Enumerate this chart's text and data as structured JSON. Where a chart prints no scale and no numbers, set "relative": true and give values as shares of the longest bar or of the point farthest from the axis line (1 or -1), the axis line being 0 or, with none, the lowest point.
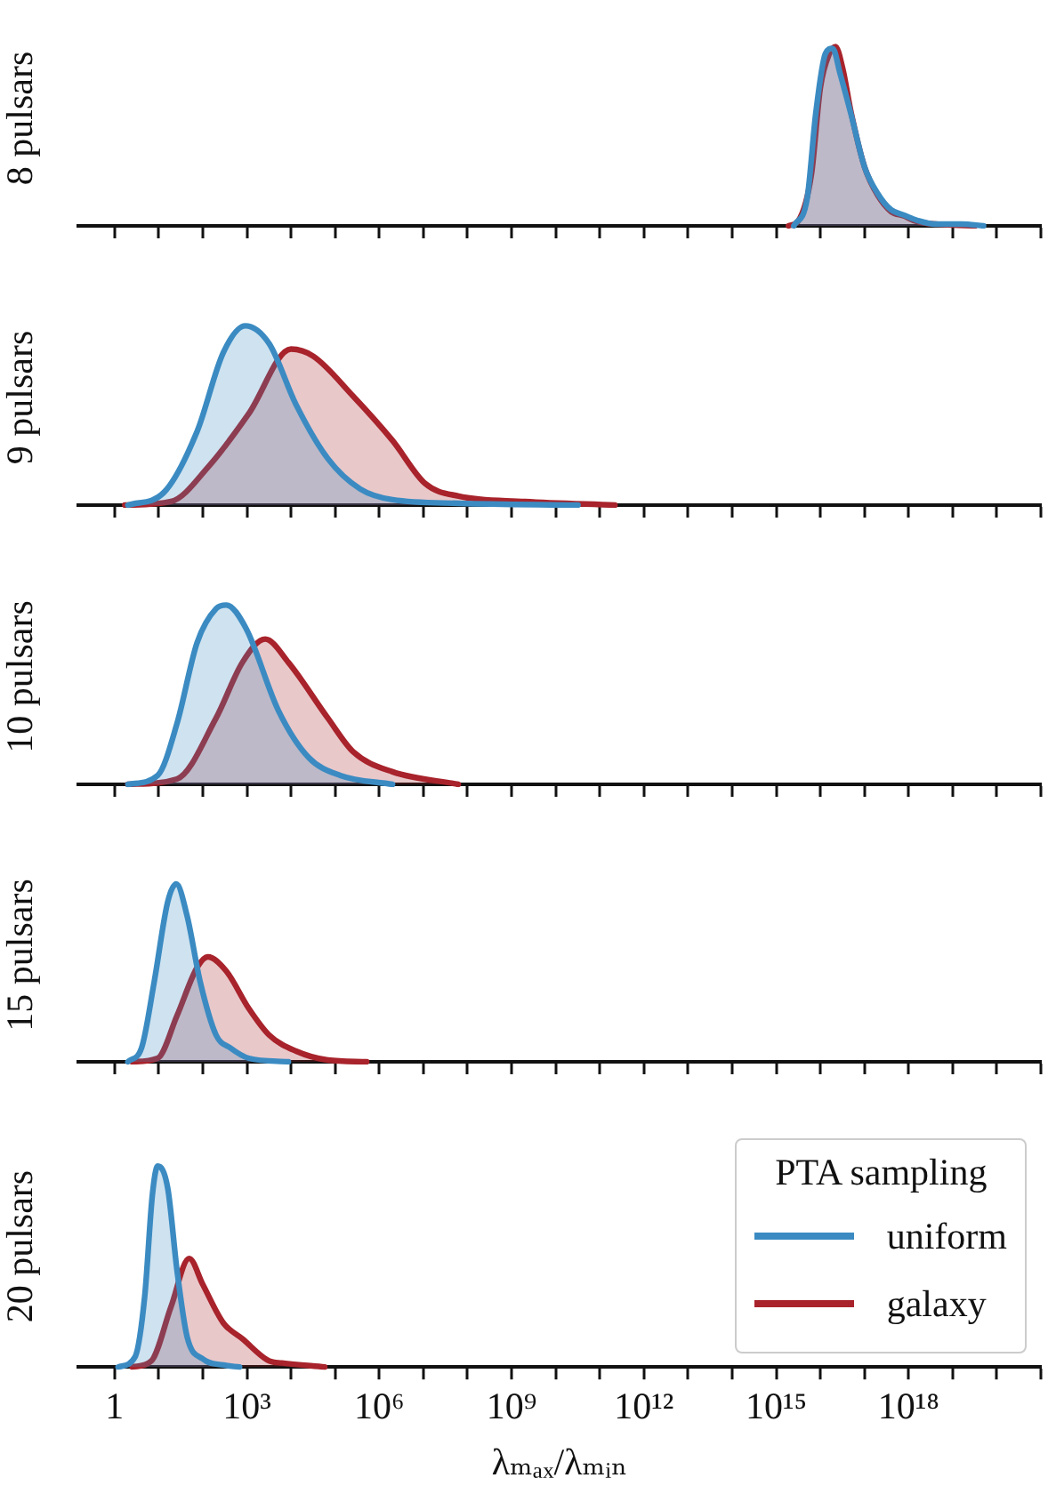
{
  "chart_data": [
    {
      "type": "area",
      "relative": true,
      "log": "x",
      "marker": "none",
      "ylabel": "8 pulsars",
      "tick_labels": false,
      "legend": false,
      "xlim": [
        0.15,
        1e+21
      ],
      "xticks": [
        {
          "value": 1,
          "label": null
        },
        {
          "value": 10,
          "label": null
        },
        {
          "value": 100,
          "label": null
        },
        {
          "value": 1000.0,
          "label": null
        },
        {
          "value": 10000.0,
          "label": null
        },
        {
          "value": 100000.0,
          "label": null
        },
        {
          "value": 1000000.0,
          "label": null
        },
        {
          "value": 10000000.0,
          "label": null
        },
        {
          "value": 100000000.0,
          "label": null
        },
        {
          "value": 1000000000.0,
          "label": null
        },
        {
          "value": 10000000000.0,
          "label": null
        },
        {
          "value": 100000000000.0,
          "label": null
        },
        {
          "value": 1000000000000.0,
          "label": null
        },
        {
          "value": 10000000000000.0,
          "label": null
        },
        {
          "value": 100000000000000.0,
          "label": null
        },
        {
          "value": 1000000000000000.0,
          "label": null
        },
        {
          "value": 1e+16,
          "label": null
        },
        {
          "value": 1e+17,
          "label": null
        },
        {
          "value": 1e+18,
          "label": null
        },
        {
          "value": 1e+19,
          "label": null
        },
        {
          "value": 1e+20,
          "label": null
        },
        {
          "value": 1e+21,
          "label": null
        }
      ],
      "series": [
        {
          "color": "#3b8bc2",
          "x": [
            2500000000000000.0,
            5000000000000000.0,
            7900000000000000.0,
            1.3e+16,
            1.9e+16,
            2.8e+16,
            5e+16,
            1e+17,
            2e+17,
            4e+17,
            7.9e+17,
            1.6e+18,
            4e+18,
            1.6e+19,
            5e+19
          ],
          "values": [
            0,
            0.15,
            0.63,
            0.96,
            0.99,
            0.85,
            0.62,
            0.33,
            0.18,
            0.09,
            0.06,
            0.03,
            0.01,
            0.01,
            0
          ]
        },
        {
          "color": "#a8232b",
          "x": [
            1900000000000000.0,
            3200000000000000.0,
            6300000000000000.0,
            1e+16,
            1.6e+16,
            2.2e+16,
            3.2e+16,
            5e+16,
            1e+17,
            2e+17,
            4e+17,
            7.9e+17,
            1.3e+18,
            2.5e+18,
            6.3e+18,
            3.2e+19
          ],
          "values": [
            0,
            0.03,
            0.29,
            0.77,
            0.96,
            1,
            0.88,
            0.63,
            0.33,
            0.17,
            0.08,
            0.055,
            0.03,
            0.015,
            0.007,
            0
          ]
        }
      ]
    },
    {
      "type": "area",
      "relative": true,
      "log": "x",
      "marker": "none",
      "ylabel": "9 pulsars",
      "tick_labels": false,
      "legend": false,
      "xlim": [
        0.15,
        1e+21
      ],
      "xticks": [
        {
          "value": 1,
          "label": null
        },
        {
          "value": 10,
          "label": null
        },
        {
          "value": 100,
          "label": null
        },
        {
          "value": 1000.0,
          "label": null
        },
        {
          "value": 10000.0,
          "label": null
        },
        {
          "value": 100000.0,
          "label": null
        },
        {
          "value": 1000000.0,
          "label": null
        },
        {
          "value": 10000000.0,
          "label": null
        },
        {
          "value": 100000000.0,
          "label": null
        },
        {
          "value": 1000000000.0,
          "label": null
        },
        {
          "value": 10000000000.0,
          "label": null
        },
        {
          "value": 100000000000.0,
          "label": null
        },
        {
          "value": 1000000000000.0,
          "label": null
        },
        {
          "value": 10000000000000.0,
          "label": null
        },
        {
          "value": 100000000000000.0,
          "label": null
        },
        {
          "value": 1000000000000000.0,
          "label": null
        },
        {
          "value": 1e+16,
          "label": null
        },
        {
          "value": 1e+17,
          "label": null
        },
        {
          "value": 1e+18,
          "label": null
        },
        {
          "value": 1e+19,
          "label": null
        },
        {
          "value": 1e+20,
          "label": null
        },
        {
          "value": 1e+21,
          "label": null
        }
      ],
      "series": [
        {
          "color": "#3b8bc2",
          "x": [
            2,
            13,
            74,
            290,
            910,
            3200,
            13000.0,
            68000.0,
            370000.0,
            2000000.0,
            63000000.0,
            32000000000.0
          ],
          "values": [
            0,
            0.07,
            0.41,
            0.85,
            1,
            0.9,
            0.56,
            0.26,
            0.09,
            0.03,
            0.01,
            0
          ]
        },
        {
          "color": "#a8232b",
          "x": [
            1.7,
            19,
            140,
            1100,
            10000.0,
            32000.0,
            250000.0,
            2000000.0,
            11000000.0,
            63000000.0,
            2000000000.0,
            220000000000.0
          ],
          "values": [
            0,
            0.02,
            0.22,
            0.51,
            0.87,
            0.83,
            0.61,
            0.36,
            0.12,
            0.05,
            0.02,
            0
          ]
        }
      ]
    },
    {
      "type": "area",
      "relative": true,
      "log": "x",
      "marker": "none",
      "ylabel": "10 pulsars",
      "tick_labels": false,
      "legend": false,
      "xlim": [
        0.15,
        1e+21
      ],
      "xticks": [
        {
          "value": 1,
          "label": null
        },
        {
          "value": 10,
          "label": null
        },
        {
          "value": 100,
          "label": null
        },
        {
          "value": 1000.0,
          "label": null
        },
        {
          "value": 10000.0,
          "label": null
        },
        {
          "value": 100000.0,
          "label": null
        },
        {
          "value": 1000000.0,
          "label": null
        },
        {
          "value": 10000000.0,
          "label": null
        },
        {
          "value": 100000000.0,
          "label": null
        },
        {
          "value": 1000000000.0,
          "label": null
        },
        {
          "value": 10000000000.0,
          "label": null
        },
        {
          "value": 100000000000.0,
          "label": null
        },
        {
          "value": 1000000000000.0,
          "label": null
        },
        {
          "value": 10000000000000.0,
          "label": null
        },
        {
          "value": 100000000000000.0,
          "label": null
        },
        {
          "value": 1000000000000000.0,
          "label": null
        },
        {
          "value": 1e+16,
          "label": null
        },
        {
          "value": 1e+17,
          "label": null
        },
        {
          "value": 1e+18,
          "label": null
        },
        {
          "value": 1e+19,
          "label": null
        },
        {
          "value": 1e+20,
          "label": null
        },
        {
          "value": 1e+21,
          "label": null
        }
      ],
      "series": [
        {
          "color": "#3b8bc2",
          "x": [
            2,
            9.5,
            26,
            74,
            200,
            340,
            950,
            5200,
            25000.0,
            130000.0,
            2000000.0
          ],
          "values": [
            0,
            0.05,
            0.34,
            0.79,
            0.98,
            1,
            0.87,
            0.41,
            0.15,
            0.05,
            0
          ]
        },
        {
          "color": "#a8232b",
          "x": [
            2,
            26,
            200,
            790,
            2600,
            8700,
            68000.0,
            260000.0,
            2000000.0,
            62000000.0
          ],
          "values": [
            0,
            0.03,
            0.37,
            0.68,
            0.81,
            0.68,
            0.37,
            0.18,
            0.07,
            0
          ]
        }
      ]
    },
    {
      "type": "area",
      "relative": true,
      "log": "x",
      "marker": "none",
      "ylabel": "15 pulsars",
      "tick_labels": false,
      "legend": false,
      "xlim": [
        0.15,
        1e+21
      ],
      "xticks": [
        {
          "value": 1,
          "label": null
        },
        {
          "value": 10,
          "label": null
        },
        {
          "value": 100,
          "label": null
        },
        {
          "value": 1000.0,
          "label": null
        },
        {
          "value": 10000.0,
          "label": null
        },
        {
          "value": 100000.0,
          "label": null
        },
        {
          "value": 1000000.0,
          "label": null
        },
        {
          "value": 10000000.0,
          "label": null
        },
        {
          "value": 100000000.0,
          "label": null
        },
        {
          "value": 1000000000.0,
          "label": null
        },
        {
          "value": 10000000000.0,
          "label": null
        },
        {
          "value": 100000000000.0,
          "label": null
        },
        {
          "value": 1000000000000.0,
          "label": null
        },
        {
          "value": 10000000000000.0,
          "label": null
        },
        {
          "value": 100000000000000.0,
          "label": null
        },
        {
          "value": 1000000000000000.0,
          "label": null
        },
        {
          "value": 1e+16,
          "label": null
        },
        {
          "value": 1e+17,
          "label": null
        },
        {
          "value": 1e+18,
          "label": null
        },
        {
          "value": 1e+19,
          "label": null
        },
        {
          "value": 1e+20,
          "label": null
        },
        {
          "value": 1e+21,
          "label": null
        }
      ],
      "series": [
        {
          "color": "#3b8bc2",
          "x": [
            2,
            4.1,
            7.9,
            16,
            25,
            44,
            87,
            200,
            410,
            1100,
            8700
          ],
          "values": [
            0,
            0.08,
            0.45,
            0.9,
            1,
            0.82,
            0.45,
            0.15,
            0.08,
            0.02,
            0
          ]
        },
        {
          "color": "#a8232b",
          "x": [
            2.5,
            9.5,
            26,
            74,
            130,
            340,
            1100,
            3200,
            13000.0,
            68000.0,
            520000.0
          ],
          "values": [
            0,
            0.02,
            0.26,
            0.53,
            0.59,
            0.51,
            0.3,
            0.15,
            0.06,
            0.01,
            0
          ]
        }
      ]
    },
    {
      "type": "area",
      "relative": true,
      "log": "x",
      "marker": "none",
      "ylabel": "20 pulsars",
      "xlabel": "λₘₐₓ/λₘᵢₙ",
      "tick_labels": "x",
      "legend": "right",
      "legend_title": "PTA sampling",
      "xlim": [
        0.15,
        1e+21
      ],
      "xticks": [
        1,
        {
          "value": 10,
          "label": null
        },
        {
          "value": 100,
          "label": null
        },
        {
          "value": 1000.0,
          "label": "10³"
        },
        {
          "value": 10000.0,
          "label": null
        },
        {
          "value": 100000.0,
          "label": null
        },
        {
          "value": 1000000.0,
          "label": "10⁶"
        },
        {
          "value": 10000000.0,
          "label": null
        },
        {
          "value": 100000000.0,
          "label": null
        },
        {
          "value": 1000000000.0,
          "label": "10⁹"
        },
        {
          "value": 10000000000.0,
          "label": null
        },
        {
          "value": 100000000000.0,
          "label": null
        },
        {
          "value": 1000000000000.0,
          "label": "10¹²"
        },
        {
          "value": 10000000000000.0,
          "label": null
        },
        {
          "value": 100000000000000.0,
          "label": null
        },
        {
          "value": 1000000000000000.0,
          "label": "10¹⁵"
        },
        {
          "value": 1e+16,
          "label": null
        },
        {
          "value": 1e+17,
          "label": null
        },
        {
          "value": 1e+18,
          "label": "10¹⁸"
        },
        {
          "value": 1e+19,
          "label": null
        },
        {
          "value": 1e+20,
          "label": null
        },
        {
          "value": 1e+21,
          "label": null
        }
      ],
      "series": [
        {
          "name": "uniform",
          "color": "#3b8bc2",
          "x": [
            1.2,
            2.9,
            4.8,
            7.2,
            9.5,
            16,
            26,
            44,
            100,
            290,
            680
          ],
          "values": [
            0,
            0.05,
            0.35,
            0.86,
            1,
            0.89,
            0.48,
            0.15,
            0.04,
            0.01,
            0
          ]
        },
        {
          "name": "galaxy",
          "color": "#a8232b",
          "x": [
            2.5,
            6.8,
            19,
            49,
            100,
            290,
            790,
            3200,
            6200,
            58000.0
          ],
          "values": [
            0,
            0.03,
            0.3,
            0.54,
            0.41,
            0.22,
            0.14,
            0.03,
            0.02,
            0
          ]
        }
      ]
    }
  ]
}
